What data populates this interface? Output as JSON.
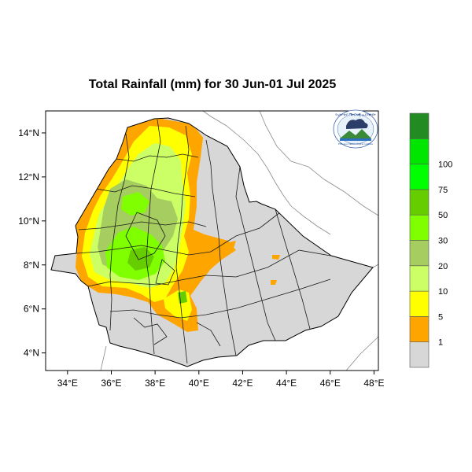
{
  "title": "Total Rainfall (mm) for 30 Jun-01 Jul 2025",
  "axes": {
    "x_ticks": [
      "34°E",
      "36°E",
      "38°E",
      "40°E",
      "42°E",
      "44°E",
      "46°E",
      "48°E"
    ],
    "y_ticks": [
      "14°N",
      "12°N",
      "10°N",
      "8°N",
      "6°N",
      "4°N"
    ],
    "lon_range": [
      33,
      48.2
    ],
    "lat_range": [
      3.2,
      15
    ]
  },
  "legend": {
    "position": "right",
    "unit": "mm",
    "colors": [
      "#d7d7d7",
      "#ffa500",
      "#ffff00",
      "#ccff66",
      "#a6cd5f",
      "#7fff00",
      "#66cd00",
      "#00ff00",
      "#00e600",
      "#228b22"
    ],
    "labels": [
      "1",
      "5",
      "10",
      "20",
      "30",
      "50",
      "75",
      "100"
    ]
  },
  "logo": {
    "name": "meteorology-institute-logo",
    "text_top": "የኢትዮጵያ ሜትሮሎጂ ኢንስቲትዩት",
    "text_bottom": "Ethiopian Meteorological Institute"
  }
}
